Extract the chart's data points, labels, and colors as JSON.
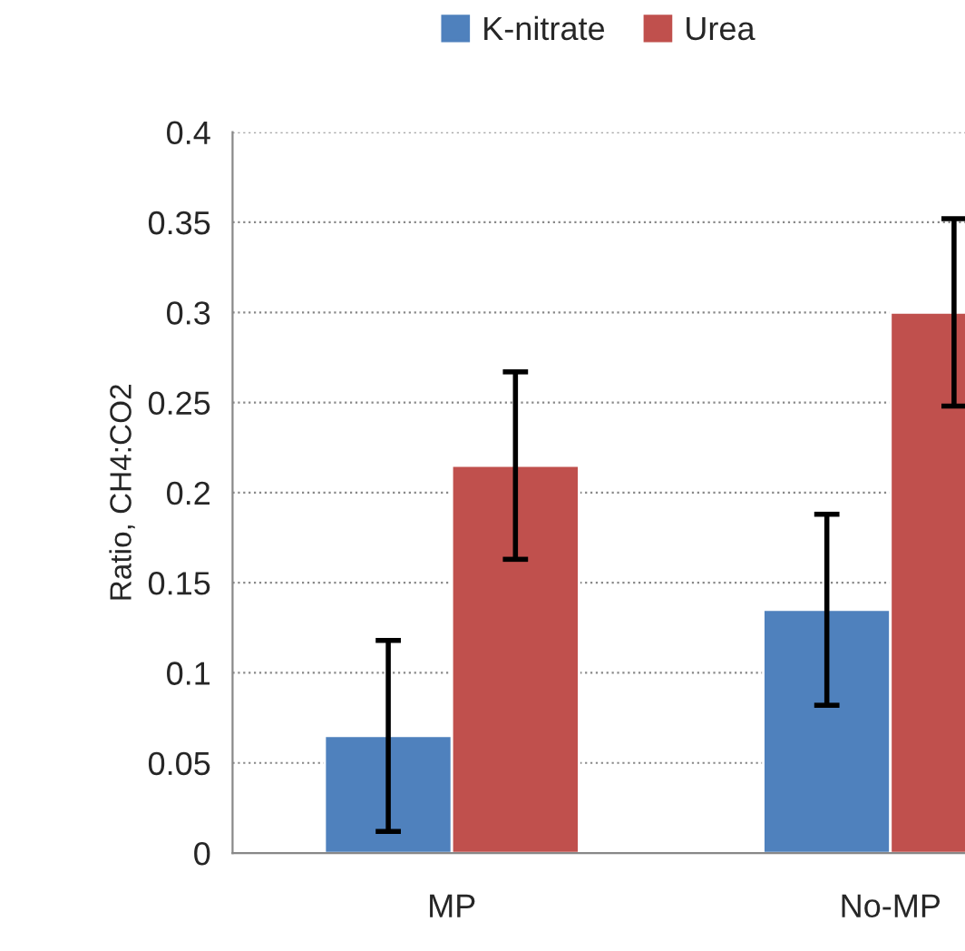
{
  "chart_data": {
    "type": "bar",
    "ylabel": "Ratio, CH4:CO2",
    "categories": [
      "MP",
      "No-MP"
    ],
    "series": [
      {
        "name": "K-nitrate",
        "color": "#4f81bd",
        "values": [
          0.065,
          0.135
        ],
        "errors": [
          0.053,
          0.053
        ]
      },
      {
        "name": "Urea",
        "color": "#c0504d",
        "values": [
          0.215,
          0.3
        ],
        "errors": [
          0.052,
          0.052
        ]
      }
    ],
    "ylim": [
      0,
      0.4
    ],
    "yticks": [
      0,
      0.05,
      0.1,
      0.15,
      0.2,
      0.25,
      0.3,
      0.35,
      0.4
    ],
    "grid": "y",
    "legend": "top"
  }
}
